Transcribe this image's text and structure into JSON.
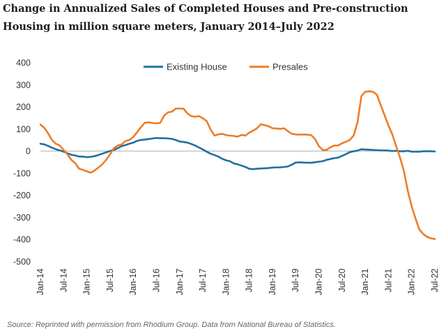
{
  "title_line1": "Change in Annualized Sales of Completed Houses and Pre-construction",
  "title_line2": "Housing in million square meters, January 2014–July 2022",
  "source": "Source: Reprinted with permission from Rhodium Group. Data from National Bureau of Statistics.",
  "chart_data": {
    "type": "line",
    "title": "Change in Annualized Sales of Completed Houses and Pre-construction Housing in million square meters, January 2014–July 2022",
    "xlabel": "",
    "ylabel": "",
    "ylim": [
      -500,
      400
    ],
    "y_ticks": [
      400,
      300,
      200,
      100,
      0,
      -100,
      -200,
      -300,
      -400,
      -500
    ],
    "x_ticks": [
      "Jan-14",
      "Jul-14",
      "Jan-15",
      "Jul-15",
      "Jan-16",
      "Jul-16",
      "Jan-17",
      "Jul-17",
      "Jan-18",
      "Jul-18",
      "Jan-19",
      "Jul-19",
      "Jan-20",
      "Jul-20",
      "Jan-21",
      "Jul-21",
      "Jan-22",
      "Jul-22"
    ],
    "x_range_months": [
      0,
      102
    ],
    "grid": false,
    "legend_position": "top-center",
    "series": [
      {
        "name": "Existing House",
        "color": "#1f6fa1",
        "points": [
          [
            0,
            33
          ],
          [
            1,
            30
          ],
          [
            2,
            23
          ],
          [
            3,
            15
          ],
          [
            4,
            8
          ],
          [
            5,
            3
          ],
          [
            6,
            -3
          ],
          [
            7,
            -10
          ],
          [
            8,
            -17
          ],
          [
            9,
            -20
          ],
          [
            10,
            -25
          ],
          [
            11,
            -25
          ],
          [
            12,
            -28
          ],
          [
            13,
            -26
          ],
          [
            14,
            -23
          ],
          [
            15,
            -18
          ],
          [
            16,
            -12
          ],
          [
            17,
            -6
          ],
          [
            18,
            0
          ],
          [
            19,
            5
          ],
          [
            20,
            13
          ],
          [
            21,
            22
          ],
          [
            22,
            27
          ],
          [
            23,
            33
          ],
          [
            24,
            38
          ],
          [
            25,
            46
          ],
          [
            26,
            50
          ],
          [
            27,
            52
          ],
          [
            28,
            54
          ],
          [
            29,
            57
          ],
          [
            30,
            59
          ],
          [
            31,
            58
          ],
          [
            32,
            58
          ],
          [
            33,
            57
          ],
          [
            34,
            55
          ],
          [
            35,
            50
          ],
          [
            36,
            43
          ],
          [
            37,
            41
          ],
          [
            38,
            38
          ],
          [
            39,
            32
          ],
          [
            40,
            25
          ],
          [
            41,
            16
          ],
          [
            42,
            7
          ],
          [
            43,
            -3
          ],
          [
            44,
            -12
          ],
          [
            45,
            -18
          ],
          [
            46,
            -25
          ],
          [
            47,
            -35
          ],
          [
            48,
            -42
          ],
          [
            49,
            -46
          ],
          [
            50,
            -56
          ],
          [
            51,
            -60
          ],
          [
            52,
            -66
          ],
          [
            53,
            -72
          ],
          [
            54,
            -80
          ],
          [
            55,
            -82
          ],
          [
            56,
            -80
          ],
          [
            57,
            -79
          ],
          [
            58,
            -78
          ],
          [
            59,
            -77
          ],
          [
            60,
            -75
          ],
          [
            61,
            -74
          ],
          [
            62,
            -74
          ],
          [
            63,
            -72
          ],
          [
            64,
            -70
          ],
          [
            65,
            -62
          ],
          [
            66,
            -52
          ],
          [
            67,
            -51
          ],
          [
            68,
            -52
          ],
          [
            69,
            -53
          ],
          [
            70,
            -53
          ],
          [
            71,
            -51
          ],
          [
            72,
            -48
          ],
          [
            73,
            -46
          ],
          [
            74,
            -40
          ],
          [
            75,
            -36
          ],
          [
            76,
            -32
          ],
          [
            77,
            -30
          ],
          [
            78,
            -22
          ],
          [
            79,
            -14
          ],
          [
            80,
            -5
          ],
          [
            81,
            -1
          ],
          [
            82,
            2
          ],
          [
            83,
            8
          ],
          [
            84,
            7
          ],
          [
            85,
            6
          ],
          [
            86,
            5
          ],
          [
            87,
            4
          ],
          [
            88,
            3
          ],
          [
            89,
            3
          ],
          [
            90,
            2
          ],
          [
            91,
            0
          ],
          [
            92,
            1
          ],
          [
            93,
            -1
          ],
          [
            94,
            -1
          ],
          [
            95,
            1
          ],
          [
            96,
            -3
          ],
          [
            97,
            -3
          ],
          [
            98,
            -3
          ],
          [
            99,
            -1
          ],
          [
            100,
            -1
          ],
          [
            101,
            -1
          ],
          [
            102,
            -2
          ]
        ]
      },
      {
        "name": "Presales",
        "color": "#ec7d27",
        "points": [
          [
            0,
            120
          ],
          [
            1,
            105
          ],
          [
            2,
            80
          ],
          [
            3,
            50
          ],
          [
            4,
            33
          ],
          [
            5,
            25
          ],
          [
            6,
            5
          ],
          [
            7,
            -15
          ],
          [
            8,
            -40
          ],
          [
            9,
            -55
          ],
          [
            10,
            -80
          ],
          [
            11,
            -85
          ],
          [
            12,
            -92
          ],
          [
            13,
            -98
          ],
          [
            14,
            -88
          ],
          [
            15,
            -75
          ],
          [
            16,
            -60
          ],
          [
            17,
            -40
          ],
          [
            18,
            -15
          ],
          [
            19,
            13
          ],
          [
            20,
            25
          ],
          [
            21,
            30
          ],
          [
            22,
            45
          ],
          [
            23,
            50
          ],
          [
            24,
            63
          ],
          [
            25,
            85
          ],
          [
            26,
            108
          ],
          [
            27,
            128
          ],
          [
            28,
            130
          ],
          [
            29,
            127
          ],
          [
            30,
            125
          ],
          [
            31,
            128
          ],
          [
            32,
            160
          ],
          [
            33,
            175
          ],
          [
            34,
            178
          ],
          [
            35,
            192
          ],
          [
            36,
            192
          ],
          [
            37,
            192
          ],
          [
            38,
            170
          ],
          [
            39,
            158
          ],
          [
            40,
            155
          ],
          [
            41,
            158
          ],
          [
            42,
            148
          ],
          [
            43,
            135
          ],
          [
            44,
            98
          ],
          [
            45,
            70
          ],
          [
            46,
            75
          ],
          [
            47,
            78
          ],
          [
            48,
            72
          ],
          [
            49,
            70
          ],
          [
            50,
            68
          ],
          [
            51,
            65
          ],
          [
            52,
            73
          ],
          [
            53,
            70
          ],
          [
            54,
            83
          ],
          [
            55,
            92
          ],
          [
            56,
            103
          ],
          [
            57,
            121
          ],
          [
            58,
            117
          ],
          [
            59,
            112
          ],
          [
            60,
            103
          ],
          [
            61,
            102
          ],
          [
            62,
            100
          ],
          [
            63,
            103
          ],
          [
            64,
            90
          ],
          [
            65,
            78
          ],
          [
            66,
            75
          ],
          [
            67,
            74
          ],
          [
            68,
            75
          ],
          [
            69,
            74
          ],
          [
            70,
            72
          ],
          [
            71,
            55
          ],
          [
            72,
            22
          ],
          [
            73,
            5
          ],
          [
            74,
            5
          ],
          [
            75,
            17
          ],
          [
            76,
            25
          ],
          [
            77,
            25
          ],
          [
            78,
            35
          ],
          [
            79,
            42
          ],
          [
            80,
            50
          ],
          [
            81,
            70
          ],
          [
            82,
            130
          ],
          [
            83,
            248
          ],
          [
            84,
            268
          ],
          [
            85,
            270
          ],
          [
            86,
            268
          ],
          [
            87,
            255
          ],
          [
            88,
            208
          ],
          [
            89,
            162
          ],
          [
            90,
            115
          ],
          [
            91,
            75
          ],
          [
            92,
            22
          ],
          [
            93,
            -30
          ],
          [
            94,
            -90
          ],
          [
            95,
            -180
          ],
          [
            96,
            -250
          ],
          [
            97,
            -305
          ],
          [
            98,
            -355
          ],
          [
            99,
            -375
          ],
          [
            100,
            -388
          ],
          [
            101,
            -395
          ],
          [
            102,
            -398
          ]
        ]
      }
    ]
  }
}
